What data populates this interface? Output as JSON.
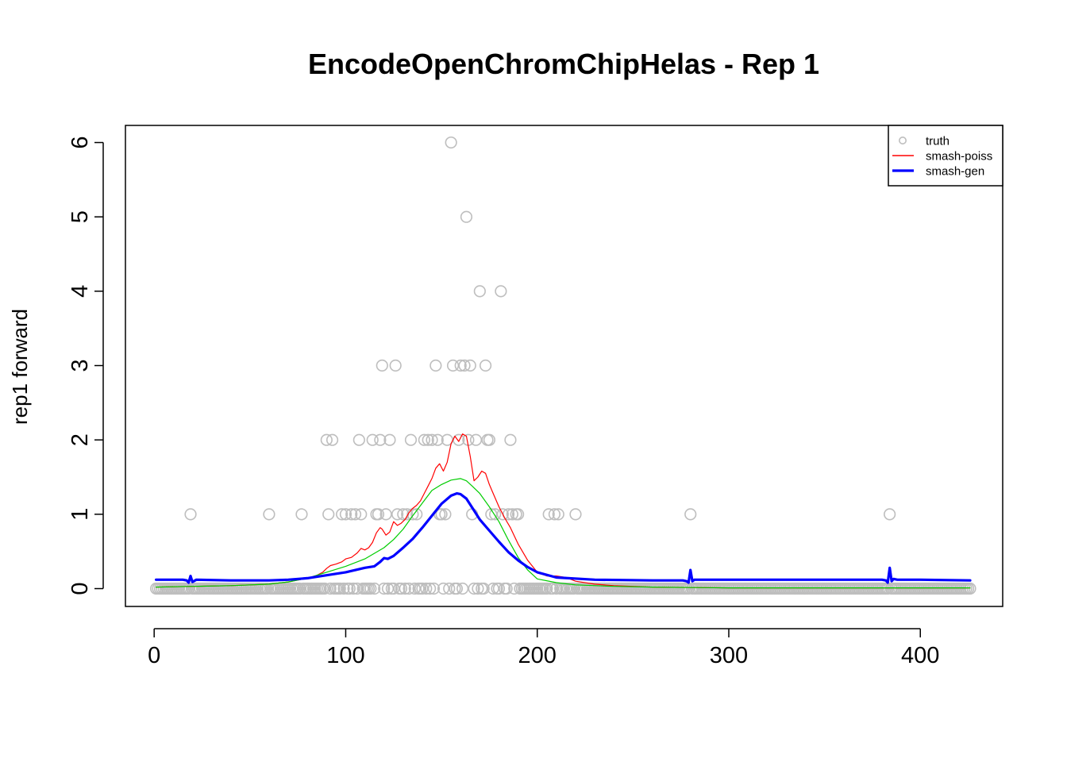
{
  "chart_data": {
    "type": "scatter",
    "title": "EncodeOpenChromChipHelas - Rep 1",
    "xlabel": "",
    "ylabel": "rep1 forward",
    "xlim": [
      -15,
      443
    ],
    "ylim": [
      -0.24,
      6.23
    ],
    "x_ticks": [
      0,
      100,
      200,
      300,
      400
    ],
    "y_ticks": [
      0,
      1,
      2,
      3,
      4,
      5,
      6
    ],
    "grid": false,
    "legend_position": "top-right",
    "legend": [
      {
        "label": "truth",
        "kind": "point",
        "color": "#bebebe"
      },
      {
        "label": "smash-poiss",
        "kind": "line",
        "color": "#ff0000"
      },
      {
        "label": "smash-gen",
        "kind": "line",
        "color": "#0000ff"
      }
    ],
    "points": {
      "name": "truth",
      "color": "#bebebe",
      "x_range": [
        1,
        426
      ],
      "nonzero": [
        [
          19,
          1
        ],
        [
          60,
          1
        ],
        [
          77,
          1
        ],
        [
          90,
          2
        ],
        [
          91,
          1
        ],
        [
          93,
          2
        ],
        [
          98,
          1
        ],
        [
          100,
          1
        ],
        [
          103,
          1
        ],
        [
          105,
          1
        ],
        [
          107,
          2
        ],
        [
          108,
          1
        ],
        [
          114,
          2
        ],
        [
          116,
          1
        ],
        [
          117,
          1
        ],
        [
          118,
          2
        ],
        [
          119,
          3
        ],
        [
          121,
          1
        ],
        [
          123,
          2
        ],
        [
          126,
          3
        ],
        [
          127,
          1
        ],
        [
          130,
          1
        ],
        [
          132,
          1
        ],
        [
          134,
          2
        ],
        [
          135,
          1
        ],
        [
          137,
          1
        ],
        [
          141,
          2
        ],
        [
          143,
          2
        ],
        [
          145,
          2
        ],
        [
          147,
          3
        ],
        [
          148,
          2
        ],
        [
          149,
          1
        ],
        [
          150,
          1
        ],
        [
          152,
          1
        ],
        [
          153,
          2
        ],
        [
          155,
          6
        ],
        [
          156,
          3
        ],
        [
          159,
          2
        ],
        [
          160,
          3
        ],
        [
          162,
          3
        ],
        [
          163,
          5
        ],
        [
          164,
          2
        ],
        [
          165,
          3
        ],
        [
          166,
          1
        ],
        [
          168,
          2
        ],
        [
          170,
          4
        ],
        [
          173,
          3
        ],
        [
          174,
          2
        ],
        [
          175,
          2
        ],
        [
          176,
          1
        ],
        [
          178,
          1
        ],
        [
          181,
          4
        ],
        [
          182,
          1
        ],
        [
          185,
          1
        ],
        [
          186,
          2
        ],
        [
          187,
          1
        ],
        [
          189,
          1
        ],
        [
          190,
          1
        ],
        [
          206,
          1
        ],
        [
          209,
          1
        ],
        [
          211,
          1
        ],
        [
          220,
          1
        ],
        [
          280,
          1
        ],
        [
          384,
          1
        ]
      ]
    },
    "series": [
      {
        "name": "smash-poiss",
        "color": "#ff0000",
        "width": 1.2,
        "x": [
          1,
          20,
          40,
          60,
          70,
          80,
          85,
          88,
          90,
          92,
          95,
          98,
          100,
          103,
          106,
          108,
          110,
          112,
          114,
          116,
          118,
          119,
          121,
          123,
          125,
          127,
          129,
          131,
          133,
          135,
          137,
          139,
          141,
          143,
          145,
          147,
          149,
          151,
          153,
          155,
          157,
          159,
          161,
          163,
          165,
          167,
          169,
          171,
          173,
          175,
          177,
          180,
          183,
          186,
          190,
          195,
          200,
          205,
          210,
          215,
          220,
          230,
          240,
          260,
          300,
          350,
          400,
          426
        ],
        "y": [
          0.02,
          0.03,
          0.04,
          0.06,
          0.09,
          0.14,
          0.18,
          0.22,
          0.27,
          0.31,
          0.33,
          0.36,
          0.4,
          0.42,
          0.48,
          0.54,
          0.52,
          0.55,
          0.62,
          0.75,
          0.82,
          0.8,
          0.72,
          0.76,
          0.9,
          0.85,
          0.88,
          0.93,
          1.02,
          1.08,
          1.12,
          1.18,
          1.28,
          1.38,
          1.48,
          1.62,
          1.68,
          1.58,
          1.7,
          1.95,
          2.05,
          1.98,
          2.08,
          2.05,
          1.78,
          1.45,
          1.5,
          1.58,
          1.55,
          1.4,
          1.28,
          1.1,
          0.95,
          0.82,
          0.6,
          0.38,
          0.22,
          0.17,
          0.17,
          0.15,
          0.1,
          0.06,
          0.04,
          0.02,
          0.01,
          0.01,
          0.01,
          0.01
        ]
      },
      {
        "name": "smash-gen",
        "color": "#0000ff",
        "width": 3.2,
        "x": [
          1,
          15,
          17,
          18,
          19,
          20,
          22,
          40,
          60,
          70,
          80,
          90,
          100,
          110,
          115,
          118,
          120,
          122,
          125,
          130,
          135,
          140,
          145,
          150,
          155,
          158,
          160,
          163,
          166,
          170,
          175,
          180,
          185,
          190,
          195,
          200,
          210,
          230,
          260,
          276,
          278,
          279,
          280,
          281,
          282,
          284,
          300,
          350,
          380,
          382,
          383,
          384,
          385,
          386,
          388,
          400,
          426
        ],
        "y": [
          0.12,
          0.12,
          0.11,
          0.08,
          0.17,
          0.09,
          0.12,
          0.11,
          0.11,
          0.12,
          0.14,
          0.18,
          0.22,
          0.28,
          0.3,
          0.36,
          0.41,
          0.4,
          0.44,
          0.55,
          0.67,
          0.82,
          0.98,
          1.14,
          1.25,
          1.28,
          1.27,
          1.21,
          1.09,
          0.93,
          0.78,
          0.63,
          0.49,
          0.38,
          0.29,
          0.22,
          0.15,
          0.12,
          0.11,
          0.11,
          0.1,
          0.08,
          0.25,
          0.1,
          0.12,
          0.12,
          0.12,
          0.12,
          0.12,
          0.11,
          0.08,
          0.28,
          0.1,
          0.13,
          0.12,
          0.12,
          0.11
        ]
      },
      {
        "name": "",
        "color": "#00cd00",
        "width": 1.2,
        "x": [
          1,
          20,
          40,
          60,
          70,
          80,
          90,
          100,
          110,
          120,
          125,
          130,
          135,
          140,
          145,
          150,
          155,
          160,
          163,
          166,
          170,
          175,
          180,
          185,
          190,
          195,
          200,
          210,
          220,
          240,
          260,
          300,
          350,
          400,
          426
        ],
        "y": [
          0.02,
          0.03,
          0.04,
          0.06,
          0.09,
          0.14,
          0.22,
          0.3,
          0.4,
          0.55,
          0.66,
          0.8,
          0.98,
          1.15,
          1.32,
          1.4,
          1.46,
          1.48,
          1.45,
          1.38,
          1.28,
          1.1,
          0.9,
          0.65,
          0.42,
          0.25,
          0.13,
          0.08,
          0.05,
          0.03,
          0.02,
          0.01,
          0.01,
          0.01,
          0.01
        ]
      }
    ]
  }
}
